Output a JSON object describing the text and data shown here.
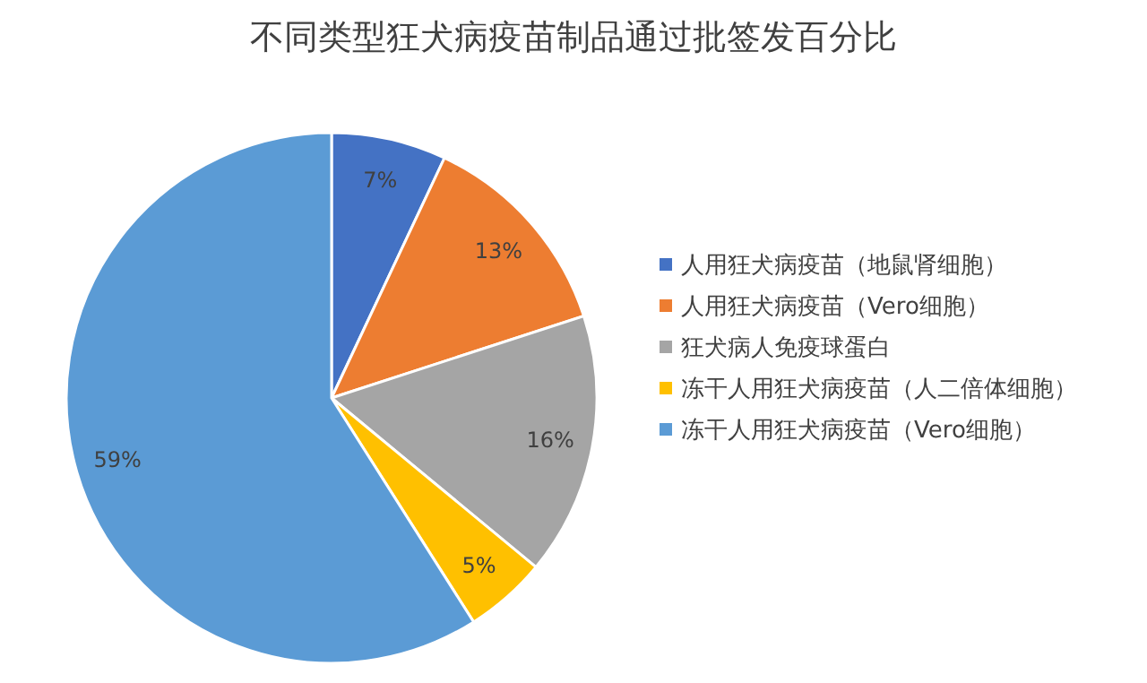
{
  "chart_data": {
    "type": "pie",
    "title": "不同类型狂犬病疫苗制品通过批签发百分比",
    "categories": [
      "人用狂犬病疫苗（地鼠肾细胞）",
      "人用狂犬病疫苗（Vero细胞）",
      "狂犬病人免疫球蛋白",
      "冻干人用狂犬病疫苗（人二倍体细胞）",
      "冻干人用狂犬病疫苗（Vero细胞）"
    ],
    "values": [
      7,
      13,
      16,
      5,
      59
    ],
    "colors": [
      "#4472c4",
      "#ed7d31",
      "#a5a5a5",
      "#ffc000",
      "#5b9bd5"
    ],
    "value_labels": [
      "7%",
      "13%",
      "16%",
      "5%",
      "59%"
    ],
    "legend": "right"
  }
}
